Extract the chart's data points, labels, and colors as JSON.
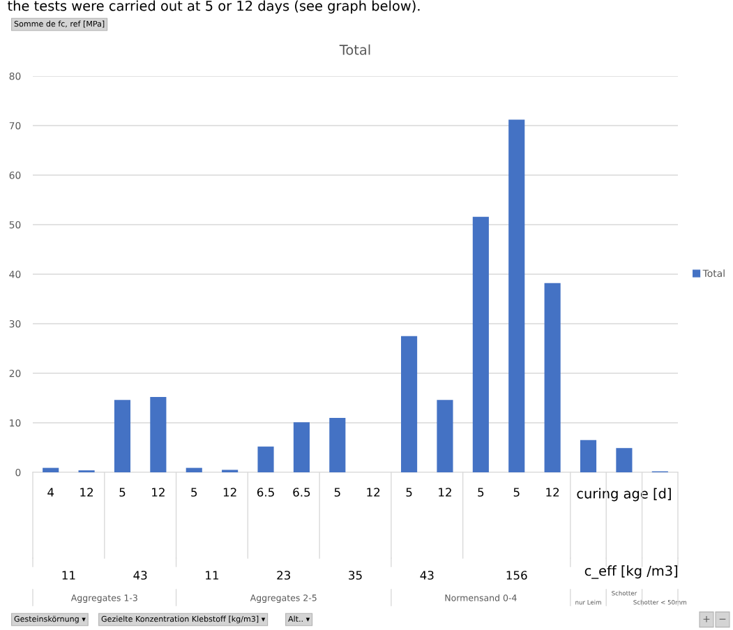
{
  "chart_data": {
    "type": "bar",
    "title": "Total",
    "categories": [
      "4",
      "12",
      "5",
      "12",
      "5",
      "12",
      "6.5",
      "6.5",
      "5",
      "12",
      "5",
      "12",
      "5",
      "5",
      "12",
      null,
      null,
      null
    ],
    "series": [
      {
        "name": "Total",
        "color": "#4472c4",
        "values": [
          0.9,
          0.4,
          14.6,
          15.2,
          0.9,
          0.5,
          5.2,
          10.1,
          11.0,
          null,
          27.5,
          14.6,
          51.6,
          71.2,
          38.2,
          6.5,
          4.9,
          0.2
        ]
      }
    ],
    "ylim": [
      0,
      80
    ],
    "yticks": [
      0,
      10,
      20,
      30,
      40,
      50,
      60,
      70,
      80
    ],
    "grid": "y",
    "legend": "right",
    "annotations": [
      "the tests were carried out at 5 or 12 days (see graph below).",
      "Somme de fc, ref [MPa]",
      "curing age [d]",
      "c_eff [kg /m3]",
      "11",
      "43",
      "11",
      "23",
      "35",
      "43",
      "156",
      "Aggregates 1-3",
      "Aggregates 2-5",
      "Normensand 0-4",
      "nur Leim",
      "Schotter",
      "Schotter < 50mm",
      "Gesteinskörnung ▾",
      "Gezielte Konzentration Klebstoff [kg/m3] ▾",
      "Alt.. ▾",
      "+",
      "−"
    ]
  }
}
